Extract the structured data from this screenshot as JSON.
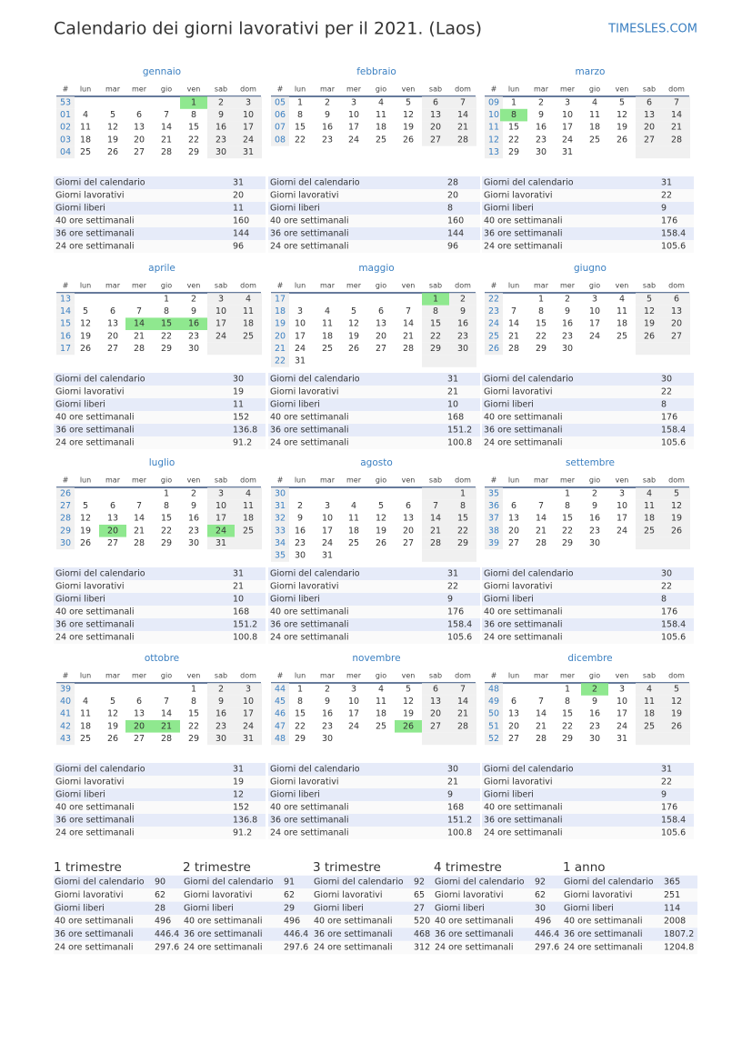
{
  "header": {
    "title": "Calendario dei giorni lavorativi per il 2021. (Laos)",
    "brand": "TIMESLES.COM"
  },
  "weekdays": [
    "#",
    "lun",
    "mar",
    "mer",
    "gio",
    "ven",
    "sab",
    "dom"
  ],
  "stat_labels": [
    "Giorni del calendario",
    "Giorni lavorativi",
    "Giorni liberi",
    "40 ore settimanali",
    "36 ore settimanali",
    "24 ore settimanali"
  ],
  "months": [
    {
      "name": "gennaio",
      "holidays": [
        1
      ],
      "stats": [
        31,
        20,
        11,
        160,
        144,
        96
      ],
      "weeks": [
        {
          "week": "53",
          "days": [
            null,
            null,
            null,
            null,
            1,
            2,
            3
          ]
        },
        {
          "week": "01",
          "days": [
            4,
            5,
            6,
            7,
            8,
            9,
            10
          ]
        },
        {
          "week": "02",
          "days": [
            11,
            12,
            13,
            14,
            15,
            16,
            17
          ]
        },
        {
          "week": "03",
          "days": [
            18,
            19,
            20,
            21,
            22,
            23,
            24
          ]
        },
        {
          "week": "04",
          "days": [
            25,
            26,
            27,
            28,
            29,
            30,
            31
          ]
        }
      ]
    },
    {
      "name": "febbraio",
      "holidays": [],
      "stats": [
        28,
        20,
        8,
        160,
        144,
        96
      ],
      "weeks": [
        {
          "week": "05",
          "days": [
            1,
            2,
            3,
            4,
            5,
            6,
            7
          ]
        },
        {
          "week": "06",
          "days": [
            8,
            9,
            10,
            11,
            12,
            13,
            14
          ]
        },
        {
          "week": "07",
          "days": [
            15,
            16,
            17,
            18,
            19,
            20,
            21
          ]
        },
        {
          "week": "08",
          "days": [
            22,
            23,
            24,
            25,
            26,
            27,
            28
          ]
        }
      ]
    },
    {
      "name": "marzo",
      "holidays": [
        8
      ],
      "stats": [
        31,
        22,
        9,
        176,
        158.4,
        105.6
      ],
      "weeks": [
        {
          "week": "09",
          "days": [
            1,
            2,
            3,
            4,
            5,
            6,
            7
          ]
        },
        {
          "week": "10",
          "days": [
            8,
            9,
            10,
            11,
            12,
            13,
            14
          ]
        },
        {
          "week": "11",
          "days": [
            15,
            16,
            17,
            18,
            19,
            20,
            21
          ]
        },
        {
          "week": "12",
          "days": [
            22,
            23,
            24,
            25,
            26,
            27,
            28
          ]
        },
        {
          "week": "13",
          "days": [
            29,
            30,
            31,
            null,
            null,
            null,
            null
          ]
        }
      ]
    },
    {
      "name": "aprile",
      "holidays": [
        14,
        15,
        16
      ],
      "stats": [
        30,
        19,
        11,
        152,
        136.8,
        91.2
      ],
      "weeks": [
        {
          "week": "13",
          "days": [
            null,
            null,
            null,
            1,
            2,
            3,
            4
          ]
        },
        {
          "week": "14",
          "days": [
            5,
            6,
            7,
            8,
            9,
            10,
            11
          ]
        },
        {
          "week": "15",
          "days": [
            12,
            13,
            14,
            15,
            16,
            17,
            18
          ]
        },
        {
          "week": "16",
          "days": [
            19,
            20,
            21,
            22,
            23,
            24,
            25
          ]
        },
        {
          "week": "17",
          "days": [
            26,
            27,
            28,
            29,
            30,
            null,
            null
          ]
        }
      ]
    },
    {
      "name": "maggio",
      "holidays": [
        1
      ],
      "stats": [
        31,
        21,
        10,
        168,
        151.2,
        100.8
      ],
      "weeks": [
        {
          "week": "17",
          "days": [
            null,
            null,
            null,
            null,
            null,
            1,
            2
          ]
        },
        {
          "week": "18",
          "days": [
            3,
            4,
            5,
            6,
            7,
            8,
            9
          ]
        },
        {
          "week": "19",
          "days": [
            10,
            11,
            12,
            13,
            14,
            15,
            16
          ]
        },
        {
          "week": "20",
          "days": [
            17,
            18,
            19,
            20,
            21,
            22,
            23
          ]
        },
        {
          "week": "21",
          "days": [
            24,
            25,
            26,
            27,
            28,
            29,
            30
          ]
        },
        {
          "week": "22",
          "days": [
            31,
            null,
            null,
            null,
            null,
            null,
            null
          ]
        }
      ]
    },
    {
      "name": "giugno",
      "holidays": [],
      "stats": [
        30,
        22,
        8,
        176,
        158.4,
        105.6
      ],
      "weeks": [
        {
          "week": "22",
          "days": [
            null,
            1,
            2,
            3,
            4,
            5,
            6
          ]
        },
        {
          "week": "23",
          "days": [
            7,
            8,
            9,
            10,
            11,
            12,
            13
          ]
        },
        {
          "week": "24",
          "days": [
            14,
            15,
            16,
            17,
            18,
            19,
            20
          ]
        },
        {
          "week": "25",
          "days": [
            21,
            22,
            23,
            24,
            25,
            26,
            27
          ]
        },
        {
          "week": "26",
          "days": [
            28,
            29,
            30,
            null,
            null,
            null,
            null
          ]
        }
      ]
    },
    {
      "name": "luglio",
      "holidays": [
        20,
        24
      ],
      "stats": [
        31,
        21,
        10,
        168,
        151.2,
        100.8
      ],
      "weeks": [
        {
          "week": "26",
          "days": [
            null,
            null,
            null,
            1,
            2,
            3,
            4
          ]
        },
        {
          "week": "27",
          "days": [
            5,
            6,
            7,
            8,
            9,
            10,
            11
          ]
        },
        {
          "week": "28",
          "days": [
            12,
            13,
            14,
            15,
            16,
            17,
            18
          ]
        },
        {
          "week": "29",
          "days": [
            19,
            20,
            21,
            22,
            23,
            24,
            25
          ]
        },
        {
          "week": "30",
          "days": [
            26,
            27,
            28,
            29,
            30,
            31,
            null
          ]
        }
      ]
    },
    {
      "name": "agosto",
      "holidays": [],
      "stats": [
        31,
        22,
        9,
        176,
        158.4,
        105.6
      ],
      "weeks": [
        {
          "week": "30",
          "days": [
            null,
            null,
            null,
            null,
            null,
            null,
            1
          ]
        },
        {
          "week": "31",
          "days": [
            2,
            3,
            4,
            5,
            6,
            7,
            8
          ]
        },
        {
          "week": "32",
          "days": [
            9,
            10,
            11,
            12,
            13,
            14,
            15
          ]
        },
        {
          "week": "33",
          "days": [
            16,
            17,
            18,
            19,
            20,
            21,
            22
          ]
        },
        {
          "week": "34",
          "days": [
            23,
            24,
            25,
            26,
            27,
            28,
            29
          ]
        },
        {
          "week": "35",
          "days": [
            30,
            31,
            null,
            null,
            null,
            null,
            null
          ]
        }
      ]
    },
    {
      "name": "settembre",
      "holidays": [],
      "stats": [
        30,
        22,
        8,
        176,
        158.4,
        105.6
      ],
      "weeks": [
        {
          "week": "35",
          "days": [
            null,
            null,
            1,
            2,
            3,
            4,
            5
          ]
        },
        {
          "week": "36",
          "days": [
            6,
            7,
            8,
            9,
            10,
            11,
            12
          ]
        },
        {
          "week": "37",
          "days": [
            13,
            14,
            15,
            16,
            17,
            18,
            19
          ]
        },
        {
          "week": "38",
          "days": [
            20,
            21,
            22,
            23,
            24,
            25,
            26
          ]
        },
        {
          "week": "39",
          "days": [
            27,
            28,
            29,
            30,
            null,
            null,
            null
          ]
        }
      ]
    },
    {
      "name": "ottobre",
      "holidays": [
        20,
        21
      ],
      "stats": [
        31,
        19,
        12,
        152,
        136.8,
        91.2
      ],
      "weeks": [
        {
          "week": "39",
          "days": [
            null,
            null,
            null,
            null,
            1,
            2,
            3
          ]
        },
        {
          "week": "40",
          "days": [
            4,
            5,
            6,
            7,
            8,
            9,
            10
          ]
        },
        {
          "week": "41",
          "days": [
            11,
            12,
            13,
            14,
            15,
            16,
            17
          ]
        },
        {
          "week": "42",
          "days": [
            18,
            19,
            20,
            21,
            22,
            23,
            24
          ]
        },
        {
          "week": "43",
          "days": [
            25,
            26,
            27,
            28,
            29,
            30,
            31
          ]
        }
      ]
    },
    {
      "name": "novembre",
      "holidays": [
        26
      ],
      "stats": [
        30,
        21,
        9,
        168,
        151.2,
        100.8
      ],
      "weeks": [
        {
          "week": "44",
          "days": [
            1,
            2,
            3,
            4,
            5,
            6,
            7
          ]
        },
        {
          "week": "45",
          "days": [
            8,
            9,
            10,
            11,
            12,
            13,
            14
          ]
        },
        {
          "week": "46",
          "days": [
            15,
            16,
            17,
            18,
            19,
            20,
            21
          ]
        },
        {
          "week": "47",
          "days": [
            22,
            23,
            24,
            25,
            26,
            27,
            28
          ]
        },
        {
          "week": "48",
          "days": [
            29,
            30,
            null,
            null,
            null,
            null,
            null
          ]
        }
      ]
    },
    {
      "name": "dicembre",
      "holidays": [
        2
      ],
      "stats": [
        31,
        22,
        9,
        176,
        158.4,
        105.6
      ],
      "weeks": [
        {
          "week": "48",
          "days": [
            null,
            null,
            1,
            2,
            3,
            4,
            5
          ]
        },
        {
          "week": "49",
          "days": [
            6,
            7,
            8,
            9,
            10,
            11,
            12
          ]
        },
        {
          "week": "50",
          "days": [
            13,
            14,
            15,
            16,
            17,
            18,
            19
          ]
        },
        {
          "week": "51",
          "days": [
            20,
            21,
            22,
            23,
            24,
            25,
            26
          ]
        },
        {
          "week": "52",
          "days": [
            27,
            28,
            29,
            30,
            31,
            null,
            null
          ]
        }
      ]
    }
  ],
  "summary": [
    {
      "title": "1 trimestre",
      "stats": [
        90,
        62,
        28,
        496,
        446.4,
        297.6
      ]
    },
    {
      "title": "2 trimestre",
      "stats": [
        91,
        62,
        29,
        496,
        446.4,
        297.6
      ]
    },
    {
      "title": "3 trimestre",
      "stats": [
        92,
        65,
        27,
        520,
        468,
        312
      ]
    },
    {
      "title": "4 trimestre",
      "stats": [
        92,
        62,
        30,
        496,
        446.4,
        297.6
      ]
    },
    {
      "title": "1 anno",
      "stats": [
        365,
        251,
        114,
        2008,
        1807.2,
        1204.8
      ]
    }
  ]
}
